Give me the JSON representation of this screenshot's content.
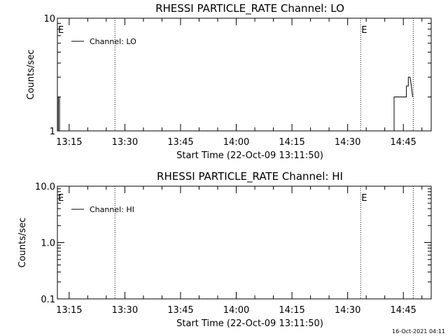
{
  "timestamp": "16-Oct-2021 04:11",
  "chart_data": [
    {
      "type": "line",
      "title": "RHESSI PARTICLE_RATE Channel: LO",
      "xlabel": "Start Time (22-Oct-09 13:11:50)",
      "ylabel": "Counts/sec",
      "yscale": "log",
      "ylim": [
        1,
        10
      ],
      "xlim": [
        "13:11:50",
        "14:52:30"
      ],
      "y_tick_labels": [
        "1",
        "10"
      ],
      "y_tick_values": [
        1,
        10
      ],
      "x_tick_labels": [
        "13:15",
        "13:30",
        "13:45",
        "14:00",
        "14:15",
        "14:30",
        "14:45"
      ],
      "legend": {
        "position": "top-left",
        "entries": [
          "Channel: LO"
        ]
      },
      "event_lines": [
        {
          "time": "13:27:20",
          "label": ""
        },
        {
          "time": "14:33:30",
          "label": "E"
        },
        {
          "time": "14:47:40",
          "label": ""
        }
      ],
      "start_marker_label": "E",
      "series": [
        {
          "name": "Channel: LO",
          "x": [
            "13:11:50",
            "13:12:05",
            "13:12:05",
            "13:12:25",
            "13:12:25",
            "13:12:40",
            "14:42:30",
            "14:42:30",
            "14:43:20",
            "14:43:20",
            "14:45:50",
            "14:45:50",
            "14:46:20",
            "14:46:20",
            "14:46:50",
            "14:47:10",
            "14:47:30"
          ],
          "y": [
            1,
            1,
            2,
            2,
            1,
            1,
            1,
            2,
            2,
            2,
            2,
            2.5,
            2.5,
            3,
            3,
            2.5,
            2
          ]
        }
      ]
    },
    {
      "type": "line",
      "title": "RHESSI PARTICLE_RATE Channel: HI",
      "xlabel": "Start Time (22-Oct-09 13:11:50)",
      "ylabel": "Counts/sec",
      "yscale": "log",
      "ylim": [
        0.1,
        10
      ],
      "xlim": [
        "13:11:50",
        "14:52:30"
      ],
      "y_tick_labels": [
        "0.1",
        "1.0",
        "10.0"
      ],
      "y_tick_values": [
        0.1,
        1,
        10
      ],
      "x_tick_labels": [
        "13:15",
        "13:30",
        "13:45",
        "14:00",
        "14:15",
        "14:30",
        "14:45"
      ],
      "legend": {
        "position": "top-left",
        "entries": [
          "Channel: HI"
        ]
      },
      "event_lines": [
        {
          "time": "13:27:20",
          "label": ""
        },
        {
          "time": "14:33:30",
          "label": "E"
        },
        {
          "time": "14:47:40",
          "label": ""
        }
      ],
      "start_marker_label": "E",
      "series": [
        {
          "name": "Channel: HI",
          "x": [],
          "y": []
        }
      ]
    }
  ]
}
